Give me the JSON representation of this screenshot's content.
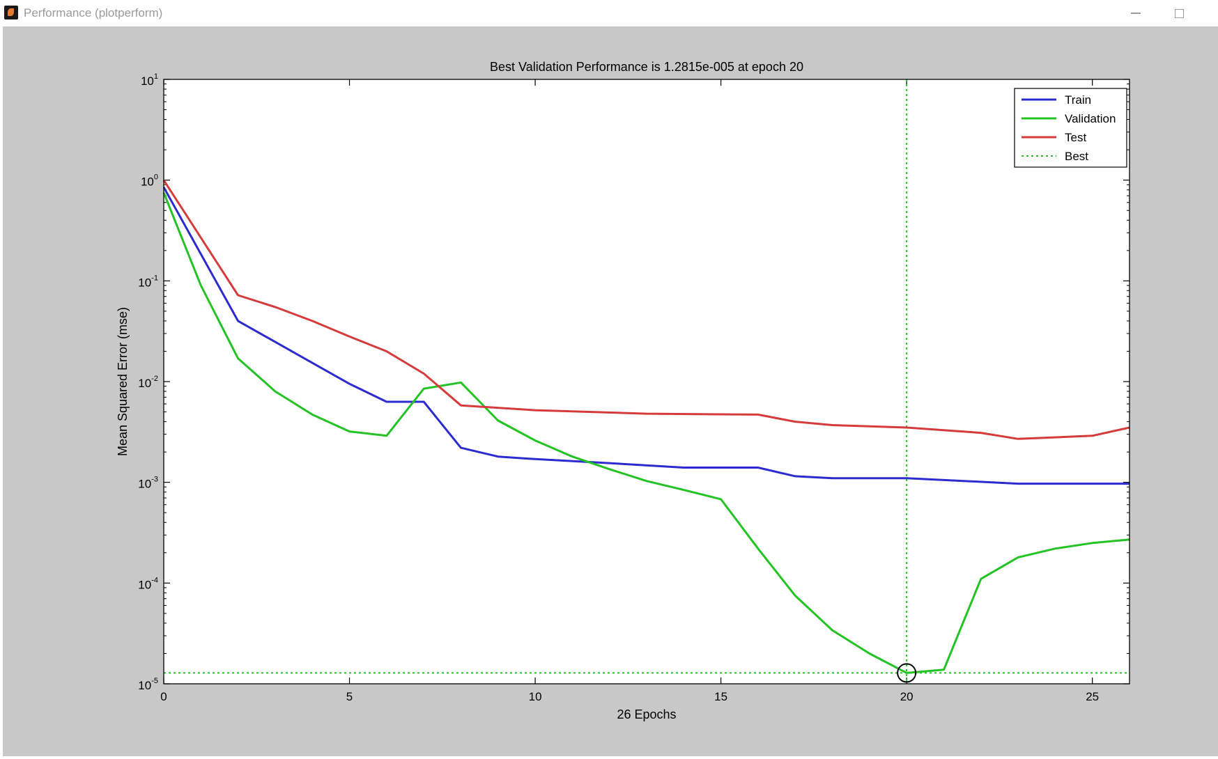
{
  "window": {
    "title": "Performance (plotperform)",
    "icon": "matlab-icon",
    "controls": [
      "minimize-icon",
      "maximize-icon"
    ]
  },
  "chart_data": {
    "type": "line",
    "title": "Best Validation Performance is 1.2815e-005 at epoch 20",
    "xlabel": "26 Epochs",
    "ylabel": "Mean Squared Error  (mse)",
    "xlim": [
      0,
      26
    ],
    "ylim": [
      1e-05,
      10
    ],
    "yscale": "log",
    "xticks": [
      0,
      5,
      10,
      15,
      20,
      25
    ],
    "yticks": [
      {
        "base": "10",
        "exp": "1"
      },
      {
        "base": "10",
        "exp": "0"
      },
      {
        "base": "10",
        "exp": "-1"
      },
      {
        "base": "10",
        "exp": "-2"
      },
      {
        "base": "10",
        "exp": "-3"
      },
      {
        "base": "10",
        "exp": "-4"
      },
      {
        "base": "10",
        "exp": "-5"
      }
    ],
    "legend_position": "top-right",
    "series": [
      {
        "name": "Train",
        "color": "#2b2bcf",
        "x": [
          0,
          2,
          5,
          6,
          7,
          8,
          9,
          10,
          12,
          14,
          16,
          17,
          18,
          20,
          23,
          26
        ],
        "y": [
          0.85,
          0.04,
          0.0095,
          0.0063,
          0.0063,
          0.0022,
          0.0018,
          0.0017,
          0.00155,
          0.0014,
          0.0014,
          0.00115,
          0.0011,
          0.0011,
          0.00097,
          0.00097
        ]
      },
      {
        "name": "Validation",
        "color": "#22c322",
        "x": [
          0,
          1,
          2,
          3,
          4,
          5,
          6,
          7,
          8,
          9,
          10,
          11,
          12,
          13,
          14,
          15,
          16,
          17,
          18,
          19,
          20,
          21,
          22,
          23,
          24,
          25,
          26
        ],
        "y": [
          0.75,
          0.09,
          0.017,
          0.008,
          0.0047,
          0.0032,
          0.0029,
          0.0085,
          0.0098,
          0.0041,
          0.0026,
          0.0018,
          0.00135,
          0.00103,
          0.00084,
          0.00068,
          0.00022,
          7.5e-05,
          3.4e-05,
          2e-05,
          1.2815e-05,
          1.38e-05,
          0.00011,
          0.00018,
          0.00022,
          0.00025,
          0.00027
        ]
      },
      {
        "name": "Test",
        "color": "#d63b3b",
        "x": [
          0,
          2,
          3,
          4,
          5,
          6,
          7,
          8,
          10,
          13,
          16,
          17,
          18,
          20,
          22,
          23,
          25,
          26
        ],
        "y": [
          1.0,
          0.072,
          0.055,
          0.04,
          0.028,
          0.02,
          0.012,
          0.0058,
          0.0052,
          0.0048,
          0.0047,
          0.004,
          0.0037,
          0.0035,
          0.0031,
          0.0027,
          0.0029,
          0.0035
        ]
      },
      {
        "name": "Best",
        "color": "#22c322",
        "style": "dotted",
        "best_epoch": 20,
        "best_value": 1.2815e-05
      }
    ]
  }
}
